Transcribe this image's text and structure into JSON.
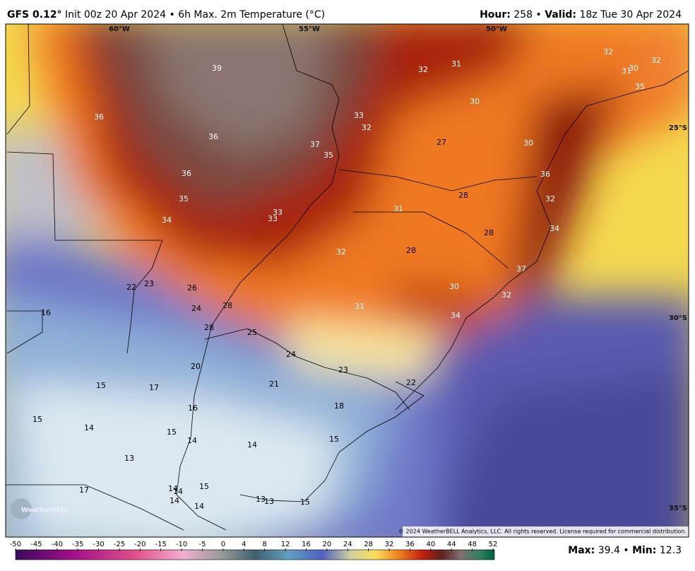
{
  "header": {
    "model": "GFS 0.12°",
    "init": "Init 00z 20 Apr 2024",
    "separator": "•",
    "product": "6h Max. 2m Temperature (°C)",
    "hour_label": "Hour:",
    "hour": "258",
    "valid_label": "Valid:",
    "valid": "18z Tue 30 Apr 2024"
  },
  "longitudes": [
    "60°W",
    "55°W",
    "50°W"
  ],
  "latitudes": [
    "25°S",
    "30°S",
    "35°S"
  ],
  "map_labels": [
    39,
    36,
    36,
    36,
    35,
    34,
    33,
    33,
    37,
    35,
    33,
    32,
    32,
    31,
    30,
    27,
    30,
    32,
    31,
    30,
    32,
    35,
    36,
    28,
    31,
    32,
    28,
    34,
    32,
    28,
    37,
    30,
    32,
    31,
    34,
    22,
    23,
    26,
    24,
    28,
    28,
    25,
    24,
    23,
    16,
    20,
    15,
    17,
    21,
    22,
    16,
    18,
    15,
    14,
    15,
    14,
    14,
    15,
    13,
    17,
    14,
    14,
    15,
    14,
    14,
    13,
    13,
    15
  ],
  "logo": "WeatherBELL",
  "copyright": "© 2024 WeatherBELL Analytics, LLC. All rights reserved. License required for commercial distribution.",
  "colorbar_ticks": [
    -50,
    -45,
    -40,
    -35,
    -30,
    -25,
    -20,
    -15,
    -10,
    -5,
    0,
    4,
    8,
    12,
    16,
    20,
    24,
    28,
    32,
    36,
    40,
    44,
    48,
    52
  ],
  "footer": {
    "max_label": "Max:",
    "max": 39.4,
    "separator": "•",
    "min_label": "Min:",
    "min": 12.3
  }
}
